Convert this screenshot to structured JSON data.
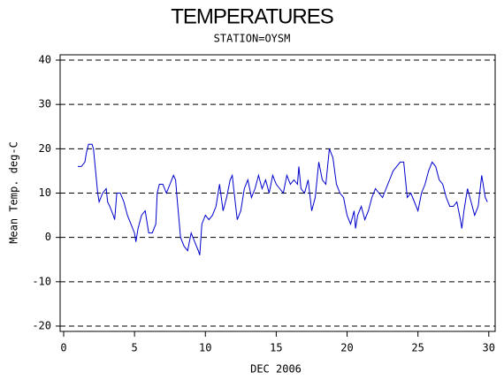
{
  "chart_data": {
    "type": "line",
    "title": "TEMPERATURES",
    "subtitle": "STATION=OYSM",
    "x_label": "DEC 2006",
    "y_label": "Mean Temp. deg-C",
    "x": [
      1.0,
      1.25,
      1.5,
      1.6,
      1.75,
      2.0,
      2.1,
      2.25,
      2.4,
      2.5,
      2.75,
      3.0,
      3.1,
      3.25,
      3.5,
      3.6,
      3.75,
      4.0,
      4.25,
      4.5,
      4.75,
      5.0,
      5.1,
      5.25,
      5.5,
      5.75,
      6.0,
      6.25,
      6.5,
      6.6,
      6.75,
      7.0,
      7.25,
      7.5,
      7.75,
      7.9,
      8.0,
      8.25,
      8.5,
      8.75,
      9.0,
      9.25,
      9.5,
      9.6,
      9.75,
      10.0,
      10.25,
      10.5,
      10.75,
      10.9,
      11.0,
      11.25,
      11.5,
      11.75,
      11.9,
      12.0,
      12.25,
      12.5,
      12.75,
      13.0,
      13.25,
      13.5,
      13.75,
      14.0,
      14.25,
      14.5,
      14.75,
      15.0,
      15.25,
      15.5,
      15.75,
      16.0,
      16.25,
      16.5,
      16.6,
      16.75,
      17.0,
      17.25,
      17.5,
      17.75,
      18.0,
      18.25,
      18.5,
      18.75,
      19.0,
      19.25,
      19.5,
      19.75,
      20.0,
      20.25,
      20.5,
      20.6,
      20.75,
      21.0,
      21.25,
      21.5,
      21.75,
      22.0,
      22.25,
      22.5,
      22.75,
      23.0,
      23.25,
      23.5,
      23.75,
      24.0,
      24.25,
      24.5,
      24.75,
      25.0,
      25.25,
      25.5,
      25.75,
      26.0,
      26.25,
      26.5,
      26.75,
      27.0,
      27.25,
      27.5,
      27.75,
      28.0,
      28.1,
      28.25,
      28.5,
      28.75,
      29.0,
      29.25,
      29.5,
      29.75,
      29.9
    ],
    "series": [
      {
        "name": "Mean Temp",
        "color": "#0000cc",
        "values": [
          16,
          16,
          17,
          19,
          21,
          21,
          20,
          15,
          10,
          8,
          10,
          11,
          8,
          7,
          5,
          4,
          10,
          10,
          8,
          5,
          3,
          1,
          -1,
          2,
          5,
          6,
          1,
          1,
          3,
          10,
          12,
          12,
          10,
          12,
          14,
          13,
          9,
          0,
          -2,
          -3,
          1,
          -1,
          -3,
          -4,
          3,
          5,
          4,
          5,
          7,
          10,
          12,
          6,
          9,
          13,
          14,
          11,
          4,
          6,
          11,
          13,
          9,
          11,
          14,
          11,
          13,
          10,
          14,
          12,
          11,
          10,
          14,
          12,
          13,
          12,
          16,
          11,
          10,
          13,
          6,
          9,
          17,
          13,
          12,
          20,
          18,
          12,
          10,
          9,
          5,
          3,
          6,
          2,
          5,
          7,
          4,
          6,
          9,
          11,
          10,
          9,
          11,
          13,
          15,
          16,
          17,
          17,
          9,
          10,
          8,
          6,
          10,
          12,
          15,
          17,
          16,
          13,
          12,
          9,
          7,
          7,
          8,
          4,
          2,
          6,
          11,
          8,
          5,
          7,
          14,
          9,
          8
        ]
      }
    ],
    "xlim": [
      -0.25,
      30.45
    ],
    "ylim": [
      -21.2,
      41.2
    ],
    "xticks": [
      0,
      5,
      10,
      15,
      20,
      25,
      30
    ],
    "yticks": [
      -20,
      -10,
      0,
      10,
      20,
      30,
      40
    ],
    "grid": true
  }
}
